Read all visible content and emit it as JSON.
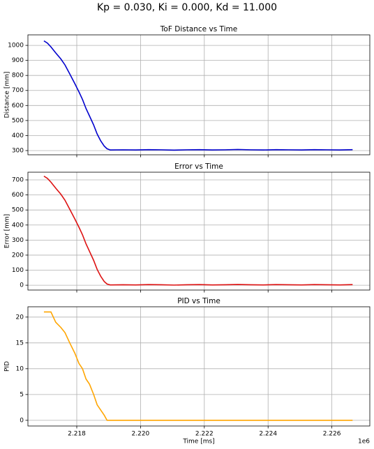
{
  "title": "Kp = 0.030, Ki = 0.000, Kd = 11.000",
  "chart_data": [
    {
      "type": "line",
      "title": "ToF Distance vs Time",
      "y_label": "Distance [mm]",
      "grid": true,
      "xlim": [
        2216468,
        2227190
      ],
      "ylim": [
        272,
        1070
      ],
      "xticks": [
        2218000,
        2220000,
        2222000,
        2224000,
        2226000
      ],
      "yticks": [
        300,
        400,
        500,
        600,
        700,
        800,
        900,
        1000
      ],
      "x": [
        2216970,
        2217080,
        2217190,
        2217340,
        2217500,
        2217630,
        2217780,
        2217940,
        2218070,
        2218180,
        2218290,
        2218400,
        2218530,
        2218640,
        2218750,
        2218860,
        2218950,
        2219050,
        2219450,
        2219850,
        2220250,
        2220650,
        2221050,
        2221450,
        2221850,
        2222250,
        2222650,
        2223050,
        2223450,
        2223850,
        2224250,
        2224650,
        2225050,
        2225450,
        2225850,
        2226250,
        2226650
      ],
      "series": [
        {
          "name": "Distance",
          "color": "#0000cd",
          "values": [
            1030,
            1015,
            990,
            950,
            910,
            870,
            810,
            745,
            690,
            640,
            580,
            530,
            470,
            410,
            365,
            330,
            312,
            304,
            305,
            304,
            306,
            305,
            303,
            305,
            306,
            304,
            305,
            307,
            305,
            304,
            306,
            305,
            304,
            306,
            305,
            304,
            306
          ]
        }
      ]
    },
    {
      "type": "line",
      "title": "Error vs Time",
      "y_label": "Error [mm]",
      "grid": true,
      "xlim": [
        2216468,
        2227190
      ],
      "ylim": [
        -32,
        751
      ],
      "xticks": [
        2218000,
        2220000,
        2222000,
        2224000,
        2226000
      ],
      "yticks": [
        0,
        100,
        200,
        300,
        400,
        500,
        600,
        700
      ],
      "x": [
        2216970,
        2217080,
        2217190,
        2217340,
        2217500,
        2217630,
        2217780,
        2217940,
        2218070,
        2218180,
        2218290,
        2218400,
        2218530,
        2218640,
        2218750,
        2218860,
        2218950,
        2219050,
        2219450,
        2219850,
        2220250,
        2220650,
        2221050,
        2221450,
        2221850,
        2222250,
        2222650,
        2223050,
        2223450,
        2223850,
        2224250,
        2224650,
        2225050,
        2225450,
        2225850,
        2226250,
        2226650
      ],
      "series": [
        {
          "name": "Error",
          "color": "#dd1111",
          "values": [
            725,
            710,
            685,
            645,
            605,
            565,
            505,
            440,
            385,
            335,
            275,
            225,
            165,
            105,
            60,
            25,
            8,
            2,
            3,
            2,
            4,
            3,
            1,
            3,
            4,
            2,
            3,
            5,
            3,
            2,
            4,
            3,
            2,
            4,
            3,
            2,
            4
          ]
        }
      ]
    },
    {
      "type": "line",
      "title": "PID vs Time",
      "y_label": "PID",
      "x_label": "Time [ms]",
      "x_offset": "1e6",
      "grid": true,
      "xlim": [
        2216468,
        2227190
      ],
      "ylim": [
        -1.1,
        22.0
      ],
      "xticks": [
        {
          "value": 2218000,
          "label": "2.218"
        },
        {
          "value": 2220000,
          "label": "2.220"
        },
        {
          "value": 2222000,
          "label": "2.222"
        },
        {
          "value": 2224000,
          "label": "2.224"
        },
        {
          "value": 2226000,
          "label": "2.226"
        }
      ],
      "yticks": [
        0,
        5,
        10,
        15,
        20
      ],
      "x": [
        2216970,
        2217080,
        2217190,
        2217340,
        2217500,
        2217630,
        2217780,
        2217940,
        2218070,
        2218180,
        2218290,
        2218400,
        2218530,
        2218640,
        2218750,
        2218860,
        2218950,
        2219050,
        2219450,
        2219850,
        2220250,
        2220650,
        2221050,
        2221450,
        2221850,
        2222250,
        2222650,
        2223050,
        2223450,
        2223850,
        2224250,
        2224650,
        2225050,
        2225450,
        2225850,
        2226250,
        2226650
      ],
      "series": [
        {
          "name": "PID",
          "color": "#ffa500",
          "values": [
            21,
            21,
            21,
            19,
            18,
            17,
            15,
            13,
            11,
            10,
            8,
            7,
            5,
            3,
            2,
            1,
            0,
            0,
            0,
            0,
            0,
            0,
            0,
            0,
            0,
            0,
            0,
            0,
            0,
            0,
            0,
            0,
            0,
            0,
            0,
            0,
            0
          ]
        }
      ]
    }
  ]
}
